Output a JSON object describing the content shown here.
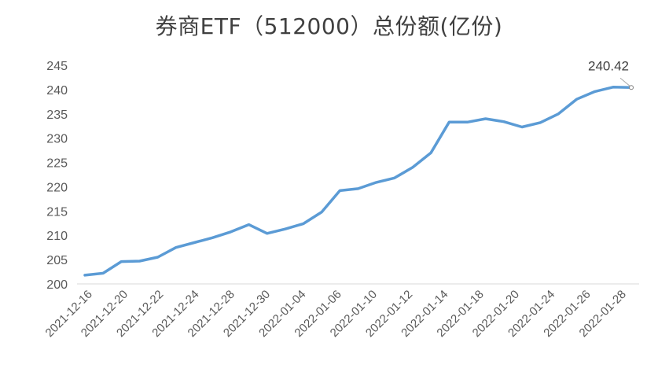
{
  "chart_data": {
    "type": "line",
    "title": "券商ETF（512000）总份额(亿份)",
    "xlabel": "",
    "ylabel": "",
    "ylim": [
      200,
      245
    ],
    "yticks": [
      200,
      205,
      210,
      215,
      220,
      225,
      230,
      235,
      240,
      245
    ],
    "xtick_labels": [
      "2021-12-16",
      "2021-12-20",
      "2021-12-22",
      "2021-12-24",
      "2021-12-28",
      "2021-12-30",
      "2022-01-04",
      "2022-01-06",
      "2022-01-10",
      "2022-01-12",
      "2022-01-14",
      "2022-01-18",
      "2022-01-20",
      "2022-01-24",
      "2022-01-26",
      "2022-01-28"
    ],
    "grid": false,
    "legend": "none",
    "line_color": "#5b9bd5",
    "series": [
      {
        "values": [
          201.8,
          202.2,
          204.6,
          204.7,
          205.5,
          207.5,
          208.5,
          209.5,
          210.7,
          212.2,
          210.4,
          211.3,
          212.4,
          214.8,
          219.2,
          219.6,
          220.9,
          221.8,
          224.0,
          227.0,
          233.3,
          233.3,
          234.0,
          233.4,
          232.3,
          233.2,
          235.0,
          238.0,
          239.6,
          240.5,
          240.42
        ]
      }
    ],
    "annotation": {
      "text": "240.42",
      "point_index": 30
    }
  }
}
